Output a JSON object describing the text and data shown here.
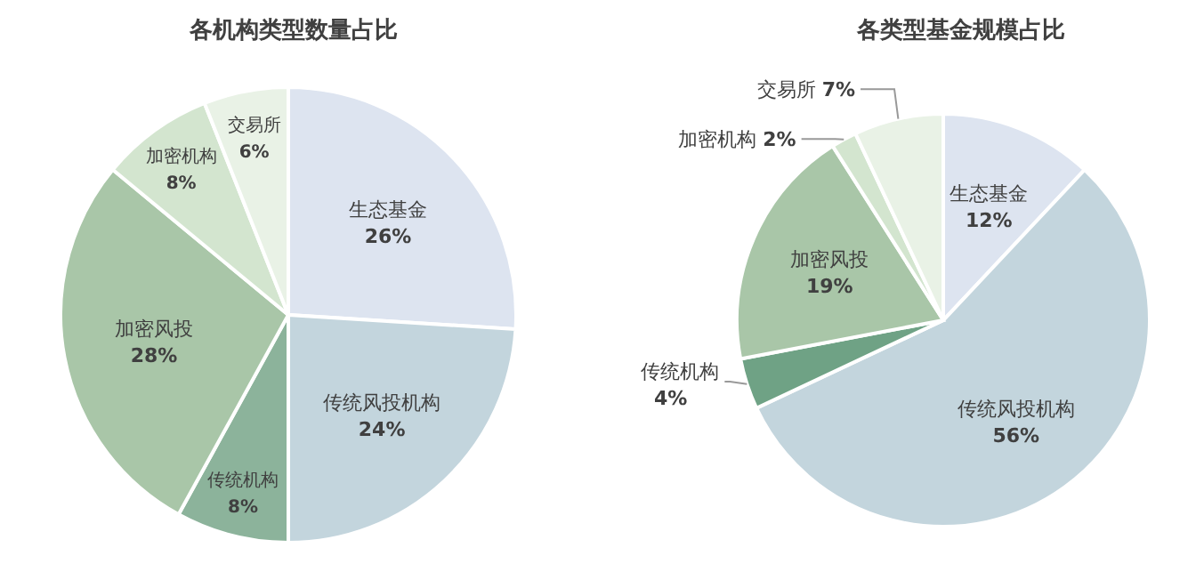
{
  "chart_data": [
    {
      "type": "pie",
      "title": "各机构类型数量占比",
      "categories": [
        "生态基金",
        "传统风投机构",
        "传统机构",
        "加密风投",
        "加密机构",
        "交易所"
      ],
      "values": [
        26,
        24,
        8,
        28,
        8,
        6
      ],
      "value_labels": [
        "26%",
        "24%",
        "8%",
        "28%",
        "8%",
        "6%"
      ],
      "colors": [
        "#dde4f0",
        "#c3d5dd",
        "#8cb39b",
        "#a9c6a8",
        "#d3e5cf",
        "#e9f2e6"
      ]
    },
    {
      "type": "pie",
      "title": "各类型基金规模占比",
      "categories": [
        "生态基金",
        "传统风投机构",
        "传统机构",
        "加密风投",
        "加密机构",
        "交易所"
      ],
      "values": [
        12,
        56,
        4,
        19,
        2,
        7
      ],
      "value_labels": [
        "12%",
        "56%",
        "4%",
        "19%",
        "2%",
        "7%"
      ],
      "colors": [
        "#dde4f0",
        "#c3d5dd",
        "#6fa285",
        "#a9c6a8",
        "#d3e5cf",
        "#e9f2e6"
      ]
    }
  ]
}
